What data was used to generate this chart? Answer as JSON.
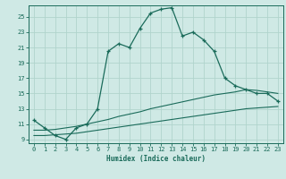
{
  "xlabel": "Humidex (Indice chaleur)",
  "ylabel": "",
  "bg_color": "#cfe9e5",
  "grid_color": "#b0d4cc",
  "line_color": "#1a6b5a",
  "xlim": [
    -0.5,
    23.5
  ],
  "ylim": [
    8.5,
    26.5
  ],
  "xticks": [
    0,
    1,
    2,
    3,
    4,
    5,
    6,
    7,
    8,
    9,
    10,
    11,
    12,
    13,
    14,
    15,
    16,
    17,
    18,
    19,
    20,
    21,
    22,
    23
  ],
  "yticks": [
    9,
    11,
    13,
    15,
    17,
    19,
    21,
    23,
    25
  ],
  "main_x": [
    0,
    1,
    2,
    3,
    4,
    5,
    6,
    7,
    8,
    9,
    10,
    11,
    12,
    13,
    14,
    15,
    16,
    17,
    18,
    19,
    20,
    21,
    22,
    23
  ],
  "main_y": [
    11.5,
    10.5,
    9.5,
    9.0,
    10.5,
    11.0,
    13.0,
    20.5,
    21.5,
    21.0,
    23.5,
    25.5,
    26.0,
    26.2,
    22.5,
    23.0,
    22.0,
    20.5,
    17.0,
    16.0,
    15.5,
    15.0,
    15.0,
    14.0
  ],
  "line2_x": [
    0,
    1,
    2,
    3,
    4,
    5,
    6,
    7,
    8,
    9,
    10,
    11,
    12,
    13,
    14,
    15,
    16,
    17,
    18,
    19,
    20,
    21,
    22,
    23
  ],
  "line2_y": [
    10.2,
    10.2,
    10.3,
    10.5,
    10.7,
    11.0,
    11.3,
    11.6,
    12.0,
    12.3,
    12.6,
    13.0,
    13.3,
    13.6,
    13.9,
    14.2,
    14.5,
    14.8,
    15.0,
    15.2,
    15.5,
    15.4,
    15.2,
    15.0
  ],
  "line3_x": [
    0,
    1,
    2,
    3,
    4,
    5,
    6,
    7,
    8,
    9,
    10,
    11,
    12,
    13,
    14,
    15,
    16,
    17,
    18,
    19,
    20,
    21,
    22,
    23
  ],
  "line3_y": [
    9.5,
    9.5,
    9.6,
    9.7,
    9.8,
    10.0,
    10.2,
    10.4,
    10.6,
    10.8,
    11.0,
    11.2,
    11.4,
    11.6,
    11.8,
    12.0,
    12.2,
    12.4,
    12.6,
    12.8,
    13.0,
    13.1,
    13.2,
    13.3
  ]
}
